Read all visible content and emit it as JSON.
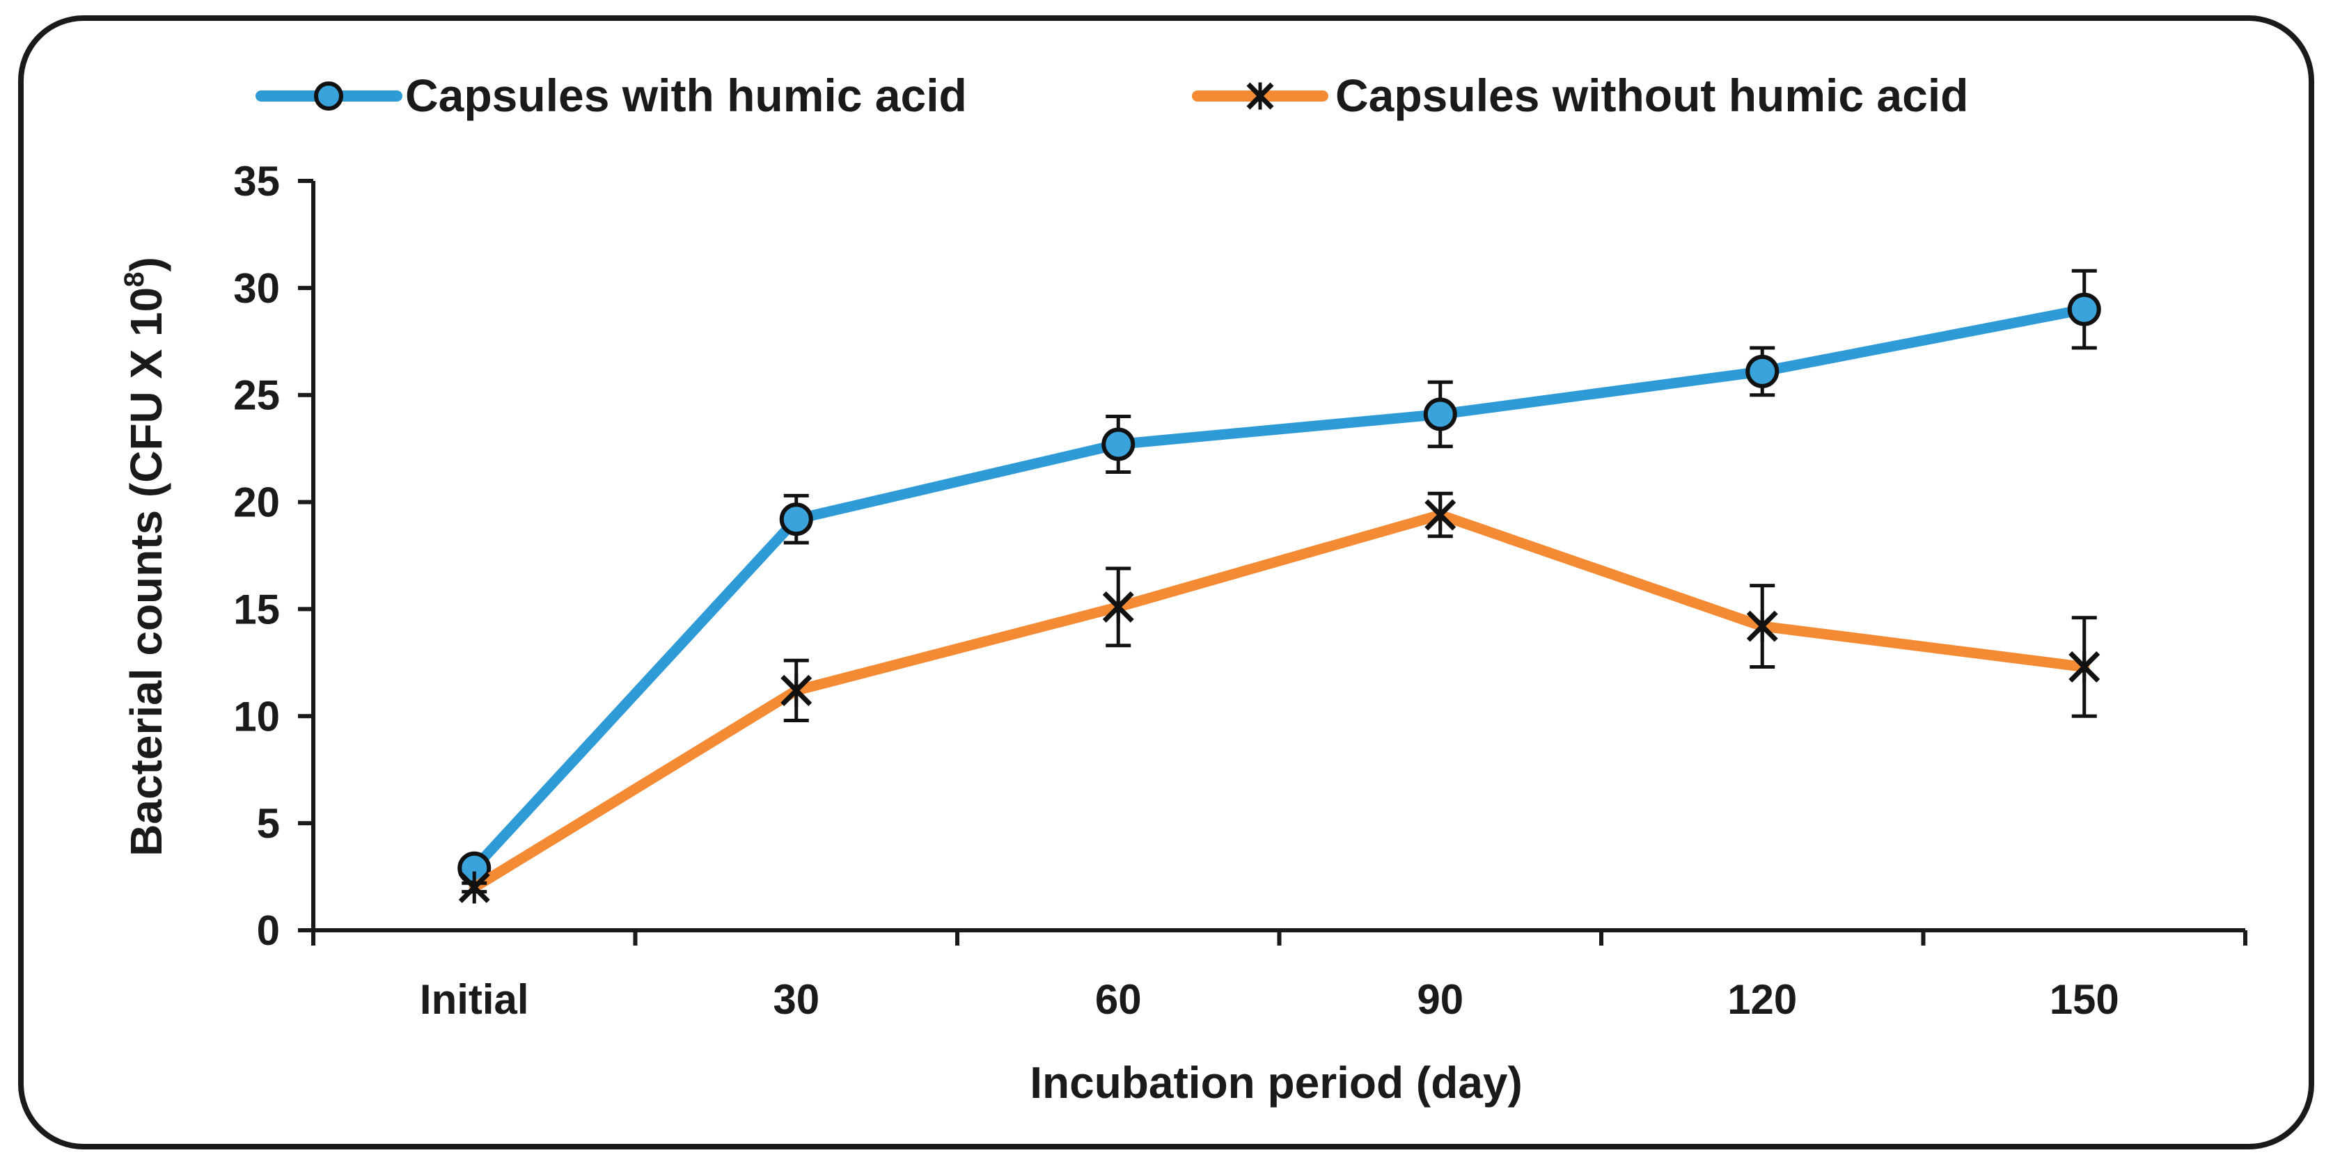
{
  "chart_data": {
    "type": "line",
    "title": "",
    "xlabel": "Incubation period (day)",
    "ylabel": "Bacterial counts (CFU X 10",
    "ylabel_superscript": "8",
    "ylabel_suffix": ")",
    "categories": [
      "Initial",
      "30",
      "60",
      "90",
      "120",
      "150"
    ],
    "ylim": [
      0,
      35
    ],
    "yticks": [
      0,
      5,
      10,
      15,
      20,
      25,
      30,
      35
    ],
    "ytick_labels": [
      "0",
      "5",
      "10",
      "15",
      "20",
      "25",
      "30",
      "35"
    ],
    "grid": false,
    "legend_position": "top",
    "series": [
      {
        "name": "Capsules with humic acid",
        "marker": "circle",
        "color": "#2E9BD6",
        "marker_fill": "#3BA3DC",
        "values": [
          2.9,
          19.2,
          22.7,
          24.1,
          26.1,
          29.0
        ],
        "errors": [
          0.3,
          1.1,
          1.3,
          1.5,
          1.1,
          1.8
        ]
      },
      {
        "name": "Capsules without humic acid",
        "marker": "star",
        "color": "#F58A34",
        "marker_fill": "#111111",
        "values": [
          2.0,
          11.2,
          15.1,
          19.4,
          14.2,
          12.3
        ],
        "errors": [
          0.2,
          1.4,
          1.8,
          1.0,
          1.9,
          2.3
        ]
      }
    ]
  },
  "colors": {
    "frame": "#1a1a1a",
    "axis": "#1a1a1a",
    "error_bar": "#111111"
  }
}
